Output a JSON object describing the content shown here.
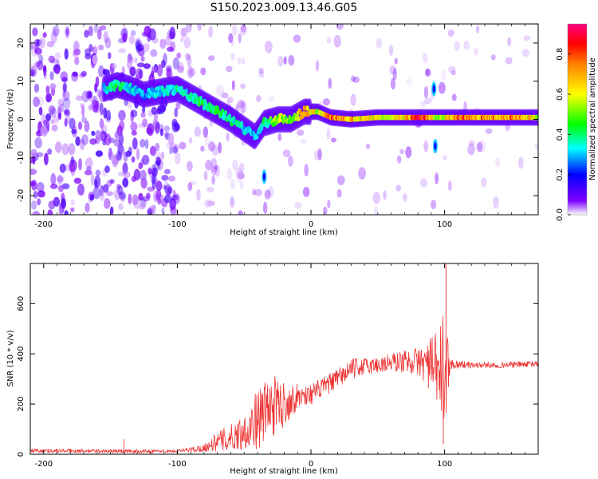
{
  "title": "S150.2023.009.13.46.G05",
  "chart_data": [
    {
      "type": "heatmap",
      "name": "spectrogram",
      "xlabel": "Height of straight line (km)",
      "ylabel": "Frequency (Hz)",
      "xlim": [
        -210,
        170
      ],
      "ylim": [
        -25,
        25
      ],
      "xticks": [
        -200,
        -100,
        0,
        100
      ],
      "xtick_labels": [
        "-200",
        "-100",
        "0",
        "100"
      ],
      "yticks": [
        -20,
        -10,
        0,
        10,
        20
      ],
      "ytick_labels": [
        "-20",
        "-10",
        "0",
        "10",
        "20"
      ],
      "ridge": [
        {
          "x": -155,
          "f": 8.0,
          "a": 0.35
        },
        {
          "x": -145,
          "f": 9.0,
          "a": 0.45
        },
        {
          "x": -135,
          "f": 8.0,
          "a": 0.35
        },
        {
          "x": -125,
          "f": 6.5,
          "a": 0.3
        },
        {
          "x": -110,
          "f": 7.5,
          "a": 0.35
        },
        {
          "x": -100,
          "f": 8.0,
          "a": 0.4
        },
        {
          "x": -90,
          "f": 6.0,
          "a": 0.4
        },
        {
          "x": -80,
          "f": 4.0,
          "a": 0.45
        },
        {
          "x": -70,
          "f": 2.0,
          "a": 0.45
        },
        {
          "x": -60,
          "f": 0.0,
          "a": 0.4
        },
        {
          "x": -50,
          "f": -2.5,
          "a": 0.35
        },
        {
          "x": -42,
          "f": -4.5,
          "a": 0.3
        },
        {
          "x": -35,
          "f": -1.0,
          "a": 0.4
        },
        {
          "x": -25,
          "f": 0.0,
          "a": 0.6
        },
        {
          "x": -15,
          "f": 0.0,
          "a": 0.5
        },
        {
          "x": -5,
          "f": 2.0,
          "a": 0.8
        },
        {
          "x": 5,
          "f": 2.0,
          "a": 0.6
        },
        {
          "x": 15,
          "f": 0.5,
          "a": 0.85
        },
        {
          "x": 30,
          "f": 0.0,
          "a": 0.7
        },
        {
          "x": 50,
          "f": 0.5,
          "a": 0.65
        },
        {
          "x": 70,
          "f": 0.5,
          "a": 0.7
        },
        {
          "x": 83,
          "f": 0.5,
          "a": 0.95
        },
        {
          "x": 95,
          "f": 0.5,
          "a": 0.5
        },
        {
          "x": 110,
          "f": 0.5,
          "a": 0.85
        },
        {
          "x": 125,
          "f": 0.5,
          "a": 0.8
        },
        {
          "x": 140,
          "f": 0.5,
          "a": 0.75
        },
        {
          "x": 155,
          "f": 0.5,
          "a": 0.8
        },
        {
          "x": 170,
          "f": 0.5,
          "a": 0.6
        }
      ],
      "spikes": [
        {
          "x": 92,
          "f": 8.0,
          "a": 0.3
        },
        {
          "x": 93,
          "f": -7.0,
          "a": 0.3
        },
        {
          "x": -35,
          "f": -15.0,
          "a": 0.3
        }
      ],
      "colorbar": {
        "label": "Normalized spectral amplitude",
        "range": [
          0,
          0.95
        ],
        "ticks": [
          0.0,
          0.2,
          0.4,
          0.6,
          0.8
        ],
        "tick_labels": [
          "0.0",
          "0.2",
          "0.4",
          "0.6",
          "0.8"
        ],
        "stops": [
          {
            "v": 0.0,
            "color": "#ffffff"
          },
          {
            "v": 0.07,
            "color": "#8000ff"
          },
          {
            "v": 0.2,
            "color": "#0000ff"
          },
          {
            "v": 0.33,
            "color": "#00ffff"
          },
          {
            "v": 0.45,
            "color": "#00ff00"
          },
          {
            "v": 0.6,
            "color": "#ffff00"
          },
          {
            "v": 0.75,
            "color": "#ff8000"
          },
          {
            "v": 0.85,
            "color": "#ff0000"
          },
          {
            "v": 0.95,
            "color": "#ff0080"
          }
        ]
      }
    },
    {
      "type": "line",
      "name": "snr",
      "xlabel": "Height of straight line (km)",
      "ylabel": "SNR (10 * v/v)",
      "xlim": [
        -210,
        170
      ],
      "ylim": [
        0,
        760
      ],
      "xticks": [
        -200,
        -100,
        0,
        100
      ],
      "xtick_labels": [
        "-200",
        "-100",
        "0",
        "100"
      ],
      "yticks": [
        0,
        200,
        400,
        600
      ],
      "ytick_labels": [
        "0",
        "200",
        "400",
        "600"
      ],
      "color": "#ee3333",
      "envelope": [
        {
          "x": -210,
          "mean": 15,
          "noise": 8
        },
        {
          "x": -140,
          "mean": 12,
          "noise": 8
        },
        {
          "x": -100,
          "mean": 12,
          "noise": 6
        },
        {
          "x": -80,
          "mean": 25,
          "noise": 15
        },
        {
          "x": -70,
          "mean": 50,
          "noise": 40
        },
        {
          "x": -60,
          "mean": 65,
          "noise": 55
        },
        {
          "x": -50,
          "mean": 90,
          "noise": 70
        },
        {
          "x": -40,
          "mean": 140,
          "noise": 120
        },
        {
          "x": -30,
          "mean": 190,
          "noise": 130
        },
        {
          "x": -20,
          "mean": 200,
          "noise": 90
        },
        {
          "x": -10,
          "mean": 230,
          "noise": 50
        },
        {
          "x": 0,
          "mean": 240,
          "noise": 40
        },
        {
          "x": 10,
          "mean": 270,
          "noise": 40
        },
        {
          "x": 20,
          "mean": 300,
          "noise": 40
        },
        {
          "x": 30,
          "mean": 340,
          "noise": 40
        },
        {
          "x": 40,
          "mean": 350,
          "noise": 35
        },
        {
          "x": 50,
          "mean": 355,
          "noise": 35
        },
        {
          "x": 60,
          "mean": 365,
          "noise": 40
        },
        {
          "x": 70,
          "mean": 370,
          "noise": 45
        },
        {
          "x": 80,
          "mean": 370,
          "noise": 55
        },
        {
          "x": 88,
          "mean": 360,
          "noise": 100
        },
        {
          "x": 95,
          "mean": 330,
          "noise": 160
        },
        {
          "x": 100,
          "mean": 330,
          "noise": 260
        },
        {
          "x": 104,
          "mean": 360,
          "noise": 20
        },
        {
          "x": 120,
          "mean": 355,
          "noise": 12
        },
        {
          "x": 140,
          "mean": 355,
          "noise": 12
        },
        {
          "x": 170,
          "mean": 360,
          "noise": 12
        }
      ],
      "peaks": [
        {
          "x": -140,
          "y": 60
        },
        {
          "x": 101,
          "y": 760
        },
        {
          "x": 99,
          "y": 40
        }
      ]
    }
  ]
}
